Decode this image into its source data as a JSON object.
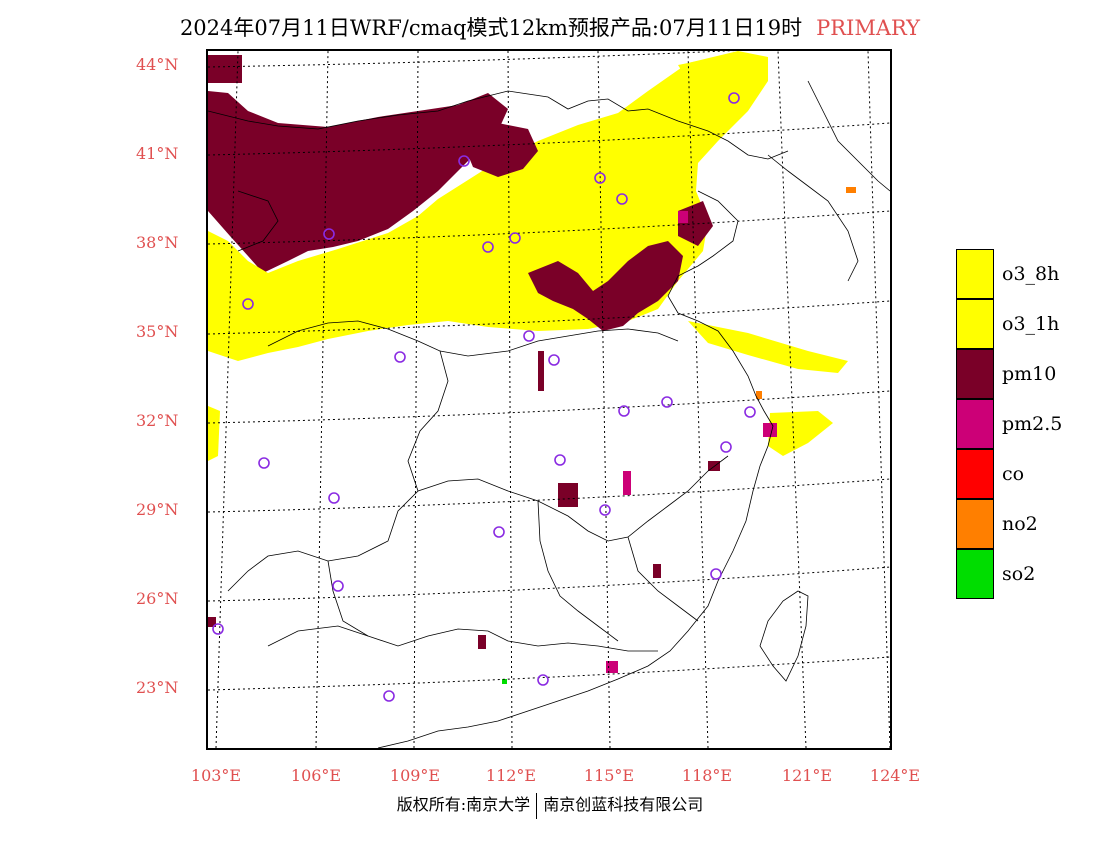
{
  "header": {
    "title": "2024年07月11日WRF/cmaq模式12km预报产品:07月11日19时",
    "tag": "PRIMARY"
  },
  "axes": {
    "lat_labels": [
      "44°N",
      "41°N",
      "38°N",
      "35°N",
      "32°N",
      "29°N",
      "26°N",
      "23°N"
    ],
    "lon_labels": [
      "103°E",
      "106°E",
      "109°E",
      "112°E",
      "115°E",
      "118°E",
      "121°E",
      "124°E"
    ]
  },
  "legend": {
    "items": [
      {
        "label": "o3_8h",
        "color": "#ffff00"
      },
      {
        "label": "o3_1h",
        "color": "#ffff00"
      },
      {
        "label": "pm10",
        "color": "#7a0028"
      },
      {
        "label": "pm2.5",
        "color": "#cc0077"
      },
      {
        "label": "co",
        "color": "#ff0000"
      },
      {
        "label": "no2",
        "color": "#ff7f00"
      },
      {
        "label": "so2",
        "color": "#00dd00"
      }
    ]
  },
  "footer": {
    "left": "版权所有:南京大学",
    "right": "南京创蓝科技有限公司"
  },
  "colors": {
    "accent": "#e05050",
    "station_marker": "#8a2be2"
  }
}
